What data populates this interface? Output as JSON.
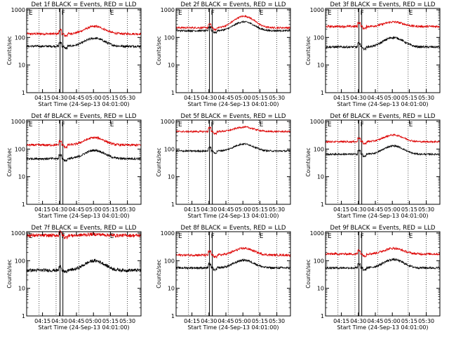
{
  "colors": {
    "events": "#000000",
    "lld": "#dd0000",
    "axis": "#000000"
  },
  "shared": {
    "ylabel": "Counts/sec",
    "xlabel": "Start Time (24-Sep-13 04:01:00)",
    "x_tick_labels": [
      "04:15",
      "04:30",
      "04:45",
      "05:00",
      "05:15",
      "05:30"
    ],
    "y_tick_labels": [
      "1",
      "10",
      "100",
      "1000"
    ],
    "xlim_minutes": [
      0,
      101
    ],
    "ylim_log10": [
      0,
      3.05
    ],
    "markers": {
      "E_left": "E",
      "F": "F",
      "E_right": "E"
    }
  },
  "chart_data": [
    {
      "type": "line",
      "title": "Det 1f BLACK = Events, RED = LLD",
      "events_base": 48,
      "lld_base": 135,
      "events_bump": 1.95,
      "lld_bump": 1.85,
      "noise": 0.04
    },
    {
      "type": "line",
      "title": "Det 2f BLACK = Events, RED = LLD",
      "events_base": 175,
      "lld_base": 225,
      "events_bump": 2.1,
      "lld_bump": 2.6,
      "noise": 0.03
    },
    {
      "type": "line",
      "title": "Det 3f BLACK = Events, RED = LLD",
      "events_base": 45,
      "lld_base": 250,
      "events_bump": 2.2,
      "lld_bump": 1.45,
      "noise": 0.04
    },
    {
      "type": "line",
      "title": "Det 4f BLACK = Events, RED = LLD",
      "events_base": 45,
      "lld_base": 140,
      "events_bump": 2.0,
      "lld_bump": 1.85,
      "noise": 0.04
    },
    {
      "type": "line",
      "title": "Det 5f BLACK = Events, RED = LLD",
      "events_base": 85,
      "lld_base": 430,
      "events_bump": 1.8,
      "lld_bump": 1.45,
      "noise": 0.03
    },
    {
      "type": "line",
      "title": "Det 6f BLACK = Events, RED = LLD",
      "events_base": 65,
      "lld_base": 185,
      "events_bump": 2.0,
      "lld_bump": 1.75,
      "noise": 0.03
    },
    {
      "type": "line",
      "title": "Det 7f BLACK = Events, RED = LLD",
      "events_base": 45,
      "lld_base": 820,
      "events_bump": 2.2,
      "lld_bump": 1.1,
      "noise": 0.06
    },
    {
      "type": "line",
      "title": "Det 8f BLACK = Events, RED = LLD",
      "events_base": 55,
      "lld_base": 160,
      "events_bump": 1.9,
      "lld_bump": 1.75,
      "noise": 0.04
    },
    {
      "type": "line",
      "title": "Det 9f BLACK = Events, RED = LLD",
      "events_base": 55,
      "lld_base": 175,
      "events_bump": 2.0,
      "lld_bump": 1.6,
      "noise": 0.04
    }
  ]
}
